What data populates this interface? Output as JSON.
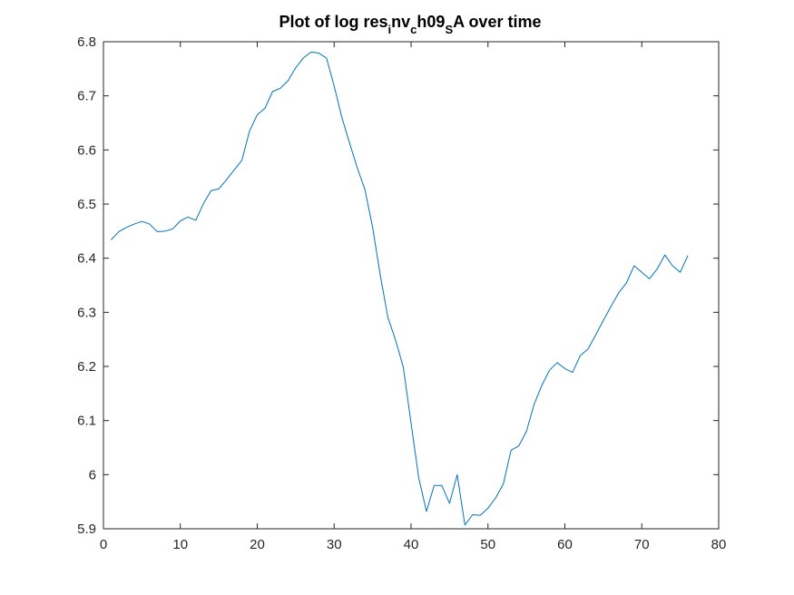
{
  "chart_data": {
    "type": "line",
    "title": {
      "prefix": "Plot of log res",
      "sub1": "i",
      "mid1": "nv",
      "sub2": "c",
      "mid2": "h09",
      "sub3": "S",
      "suffix": "A over time"
    },
    "xlabel": "",
    "ylabel": "",
    "xlim": [
      0,
      80
    ],
    "ylim": [
      5.9,
      6.8
    ],
    "xticks": [
      "0",
      "10",
      "20",
      "30",
      "40",
      "50",
      "60",
      "70",
      "80"
    ],
    "yticks": [
      "5.9",
      "6",
      "6.1",
      "6.2",
      "6.3",
      "6.4",
      "6.5",
      "6.6",
      "6.7",
      "6.8"
    ],
    "grid": false,
    "line_color": "#0072BD",
    "series": [
      {
        "x": [
          1,
          2,
          3,
          4,
          5,
          6,
          7,
          8,
          9,
          10,
          11,
          12,
          13,
          14,
          15,
          16,
          17,
          18,
          19,
          20,
          21,
          22,
          23,
          24,
          25,
          26,
          27,
          28,
          29,
          30,
          31,
          32,
          33,
          34,
          35,
          36,
          37,
          38,
          39,
          40,
          41,
          42,
          43,
          44,
          45,
          46,
          47,
          48,
          49,
          50,
          51,
          52,
          53,
          54,
          55,
          56,
          57,
          58,
          59,
          60,
          61,
          62,
          63,
          64,
          65,
          66,
          67,
          68,
          69,
          70,
          71,
          72,
          73,
          74,
          75,
          76
        ],
        "y": [
          6.434,
          6.449,
          6.457,
          6.463,
          6.468,
          6.463,
          6.449,
          6.45,
          6.454,
          6.469,
          6.476,
          6.47,
          6.501,
          6.525,
          6.528,
          6.545,
          6.563,
          6.581,
          6.635,
          6.665,
          6.677,
          6.708,
          6.714,
          6.728,
          6.752,
          6.77,
          6.781,
          6.779,
          6.77,
          6.718,
          6.66,
          6.613,
          6.567,
          6.527,
          6.457,
          6.368,
          6.29,
          6.248,
          6.198,
          6.095,
          5.994,
          5.932,
          5.98,
          5.98,
          5.947,
          6.0,
          5.907,
          5.926,
          5.925,
          5.938,
          5.957,
          5.983,
          6.045,
          6.053,
          6.08,
          6.13,
          6.165,
          6.193,
          6.207,
          6.196,
          6.189,
          6.22,
          6.232,
          6.258,
          6.285,
          6.311,
          6.336,
          6.354,
          6.386,
          6.374,
          6.362,
          6.38,
          6.406,
          6.386,
          6.374,
          6.405
        ]
      }
    ]
  }
}
